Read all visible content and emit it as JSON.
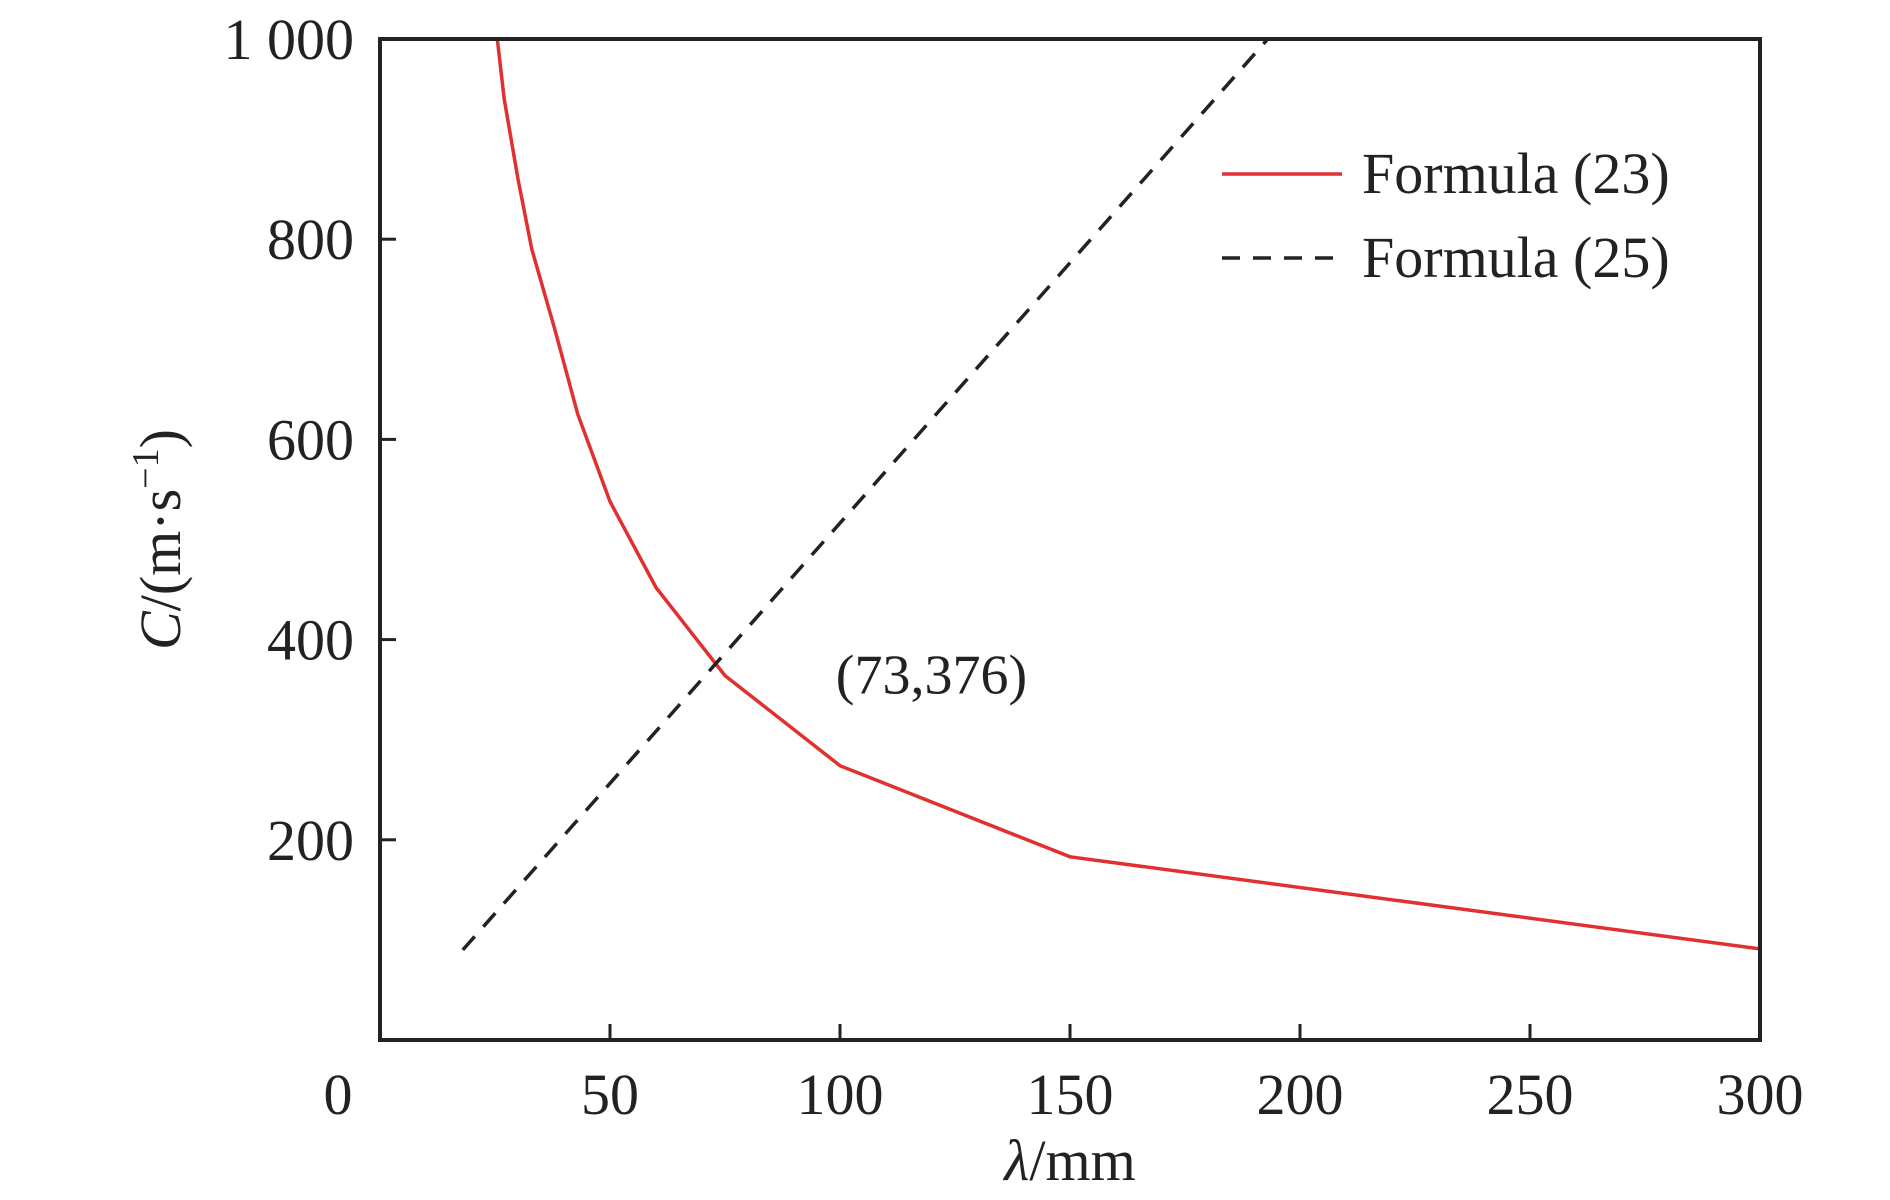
{
  "chart_data": {
    "type": "line",
    "xlabel_symbol": "λ",
    "xlabel_unit": "/mm",
    "ylabel_symbol": "C",
    "ylabel_unit": "/(m·s",
    "ylabel_exp": "−1",
    "ylabel_close": ")",
    "xlim": [
      0,
      300
    ],
    "ylim": [
      0,
      1000
    ],
    "x_ticks": [
      50,
      100,
      150,
      200,
      250,
      300
    ],
    "x_tick_labels": [
      "50",
      "100",
      "150",
      "200",
      "250",
      "300"
    ],
    "y_ticks": [
      200,
      400,
      600,
      800,
      1000
    ],
    "y_tick_labels": [
      "200",
      "400",
      "600",
      "800",
      "1 000"
    ],
    "origin_label": "0",
    "grid": false,
    "legend_position": "top-right",
    "series": [
      {
        "name": "Formula (23)",
        "color": "#e03030",
        "style": "solid",
        "x": [
          25.5,
          27,
          30,
          33,
          38,
          43,
          50,
          60,
          75,
          100,
          150,
          300
        ],
        "y": [
          1000,
          940,
          860,
          790,
          710,
          625,
          538,
          452,
          364,
          274,
          183,
          91
        ]
      },
      {
        "name": "Formula (25)",
        "color": "#222222",
        "style": "dashed",
        "x": [
          18,
          193
        ],
        "y": [
          90,
          1000
        ]
      }
    ],
    "annotations": [
      {
        "text": "(73,376)",
        "x": 73,
        "y": 376
      }
    ]
  }
}
